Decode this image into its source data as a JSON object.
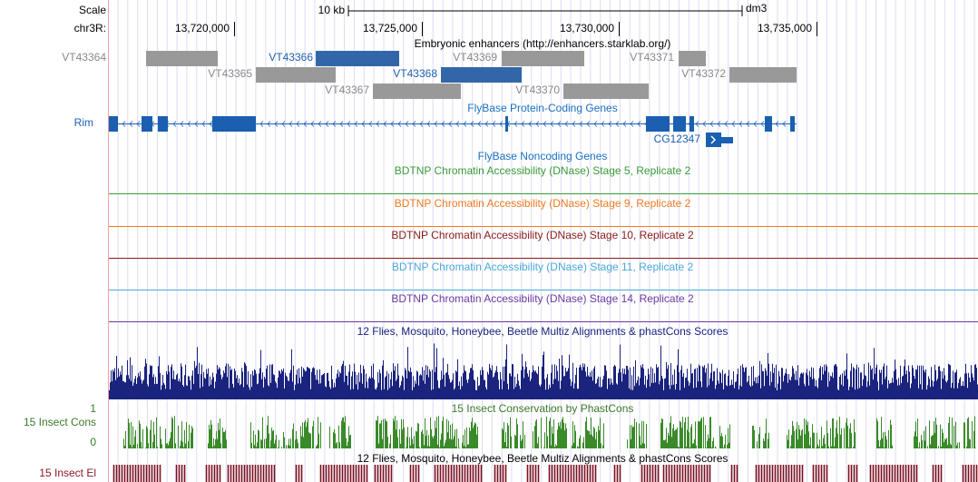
{
  "scale": {
    "label": "Scale",
    "bar_label": "10 kb",
    "assembly": "dm3"
  },
  "position": {
    "chrom": "chr3R:",
    "ticks": [
      "13,720,000",
      "13,725,000",
      "13,730,000",
      "13,735,000"
    ]
  },
  "enhancers": {
    "title": "Embryonic enhancers (http://enhancers.starklab.org/)",
    "items": [
      "VT43364",
      "VT43366",
      "VT43369",
      "VT43371",
      "VT43365",
      "VT43368",
      "VT43372",
      "VT43367",
      "VT43370"
    ]
  },
  "genes": {
    "title": "FlyBase Protein-Coding Genes",
    "items": [
      "Rim",
      "CG12347"
    ]
  },
  "noncoding": {
    "title": "FlyBase Noncoding Genes"
  },
  "dnase": {
    "titles": [
      "BDTNP Chromatin Accessibility (DNase) Stage 5, Replicate 2",
      "BDTNP Chromatin Accessibility (DNase) Stage 9, Replicate 2",
      "BDTNP Chromatin Accessibility (DNase) Stage 10, Replicate 2",
      "BDTNP Chromatin Accessibility (DNase) Stage 11, Replicate 2",
      "BDTNP Chromatin Accessibility (DNase) Stage 14, Replicate 2"
    ]
  },
  "multiz": {
    "title": "12 Flies, Mosquito, Honeybee, Beetle Multiz Alignments & phastCons Scores"
  },
  "phastcons": {
    "title": "15 Insect Conservation by PhastCons",
    "left_label": "15 Insect Cons",
    "max": 1,
    "min": 0
  },
  "elements": {
    "title": "12 Flies, Mosquito, Honeybee, Beetle Multiz Alignments & phastCons Scores",
    "left_label": "15 Insect El"
  }
}
